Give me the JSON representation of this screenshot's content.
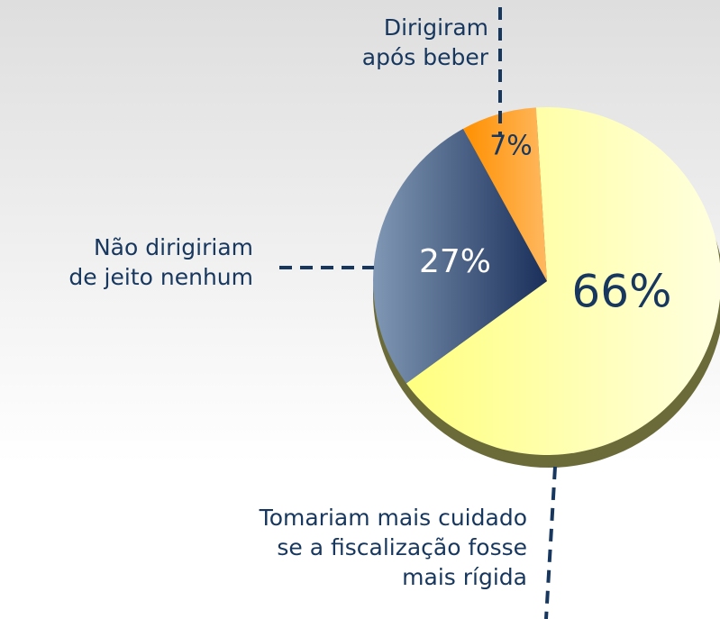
{
  "chart_data": {
    "type": "pie",
    "categories": [
      "Tomariam mais cuidado\nse a fiscalização fosse\nmais rígida",
      "Não dirigiriam\nde jeito nenhum",
      "Dirigiram\napós beber"
    ],
    "values": [
      66,
      27,
      7
    ],
    "value_labels": [
      "66%",
      "27%",
      "7%"
    ],
    "colors": [
      "#ffff99",
      "#1f3864",
      "#ff9900"
    ]
  }
}
